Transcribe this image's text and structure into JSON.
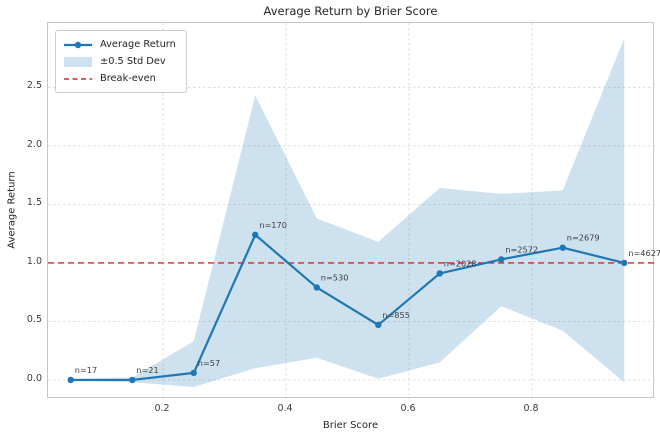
{
  "title": "Average Return by Brier Score",
  "legend": {
    "items": [
      {
        "label": "Average Return",
        "type": "line"
      },
      {
        "label": "±0.5 Std Dev",
        "type": "patch"
      },
      {
        "label": "Break-even",
        "type": "dash"
      }
    ]
  },
  "colors": {
    "line": "#1f77b4",
    "band_fill": "#1f77b4",
    "band_solid": "#d0e1ef",
    "breakeven": "#d62728",
    "grid": "#cfcfcf",
    "spine": "#c3c7cc",
    "text": "#262626",
    "tick_text": "#3b3b3b"
  },
  "chart_data": {
    "type": "line",
    "title": "Average Return by Brier Score",
    "xlabel": "Brier Score",
    "ylabel": "Average Return",
    "x": [
      0.05,
      0.15,
      0.25,
      0.35,
      0.45,
      0.55,
      0.65,
      0.75,
      0.85,
      0.95
    ],
    "series": [
      {
        "name": "Average Return",
        "values": [
          0.0,
          0.0,
          0.06,
          1.24,
          0.79,
          0.47,
          0.91,
          1.03,
          1.13,
          1.0
        ]
      }
    ],
    "band": {
      "name": "±0.5 Std Dev",
      "upper": [
        0.01,
        0.02,
        0.33,
        2.43,
        1.38,
        1.18,
        1.64,
        1.59,
        1.62,
        2.92
      ],
      "lower": [
        -0.01,
        -0.02,
        -0.06,
        0.1,
        0.19,
        0.01,
        0.15,
        0.63,
        0.42,
        -0.02
      ]
    },
    "breakeven": 1.0,
    "counts": [
      17,
      21,
      57,
      170,
      530,
      855,
      2028,
      2572,
      2679,
      4627
    ],
    "annotations": [
      "n=17",
      "n=21",
      "n=57",
      "n=170",
      "n=530",
      "n=855",
      "n=2028",
      "n=2572",
      "n=2679",
      "n=4627"
    ],
    "xticks": [
      0.2,
      0.4,
      0.6,
      0.8
    ],
    "yticks": [
      0.0,
      0.5,
      1.0,
      1.5,
      2.0,
      2.5
    ],
    "xlim": [
      0.013,
      1.0
    ],
    "ylim": [
      -0.163,
      3.05
    ],
    "grid": true,
    "legend_position": "upper left"
  }
}
